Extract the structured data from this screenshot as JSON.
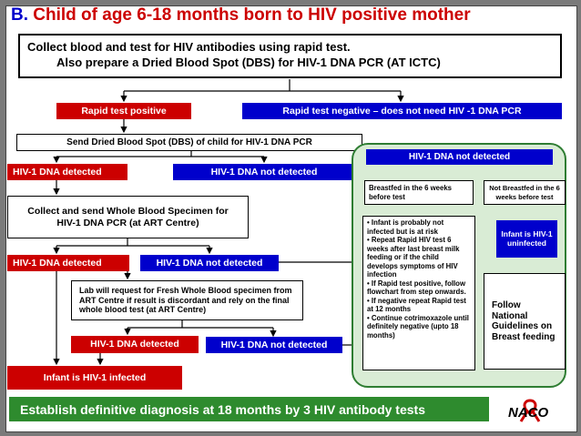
{
  "title": {
    "label": "B.",
    "text": "Child of age 6-18 months born to HIV positive mother"
  },
  "intro": {
    "line1": "Collect blood and test for HIV antibodies using rapid test.",
    "line2": "Also prepare a Dried Blood Spot (DBS) for HIV-1 DNA PCR (AT ICTC)"
  },
  "nodes": {
    "rapid_positive": "Rapid test positive",
    "rapid_negative": "Rapid test negative – does not need HIV -1 DNA PCR",
    "send_dbs": "Send Dried Blood Spot (DBS) of child for HIV-1 DNA PCR",
    "dna_detected_1": "HIV-1 DNA detected",
    "dna_not_detected_1": "HIV-1 DNA not detected",
    "collect_whole_blood": "Collect and send Whole Blood Specimen for HIV-1 DNA PCR (at ART Centre)",
    "dna_detected_2": "HIV-1 DNA detected",
    "dna_not_detected_2": "HIV-1 DNA not detected",
    "lab_request": "Lab will request for Fresh Whole Blood specimen from ART Centre if result is discordant and rely on the final whole blood test (at ART Centre)",
    "dna_detected_3": "HIV-1 DNA detected",
    "dna_not_detected_3": "HIV-1 DNA not detected",
    "infant_infected": "Infant is HIV-1 infected"
  },
  "panel": {
    "header": "HIV-1 DNA not detected",
    "breastfed": "Breastfed in the 6 weeks before test",
    "not_breastfed": "Not Breastfed in the 6 weeks before test",
    "bullets": [
      "Infant is probably not infected but is at risk",
      "Repeat Rapid HIV test 6 weeks after last breast milk feeding or if the child develops symptoms of HIV infection",
      "If Rapid test positive, follow flowchart from step onwards.",
      "If negative repeat Rapid test at 12 months",
      "Continue cotrimoxazole until definitely negative (upto 18 months)"
    ],
    "uninfected": "Infant is HIV-1 uninfected",
    "follow": "Follow National Guidelines on Breast feeding"
  },
  "footer": {
    "text": "Establish definitive diagnosis at 18 months by 3 HIV antibody tests"
  },
  "logo": {
    "text": "NACO"
  },
  "colors": {
    "red": "#cc0000",
    "blue": "#0000cc",
    "green": "#2e8b2e",
    "panel": "#d9ecd5"
  }
}
